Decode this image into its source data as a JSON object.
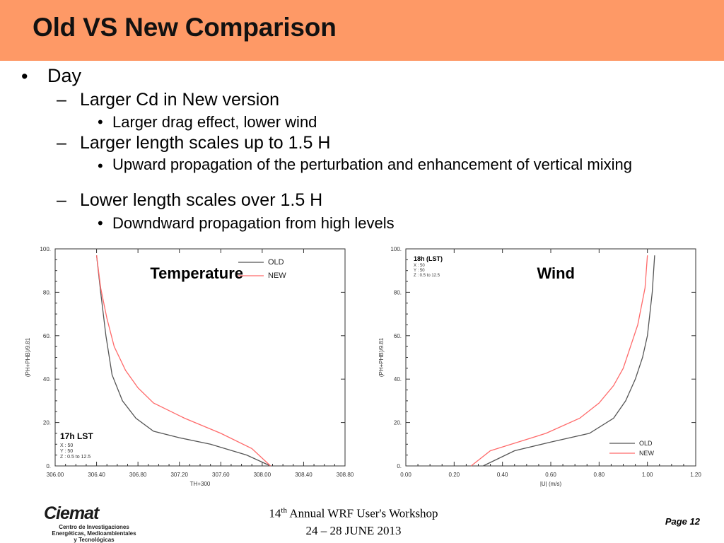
{
  "slide": {
    "title": "Old VS New Comparison",
    "bullets": [
      {
        "level": 1,
        "marker": "•",
        "text": "Day"
      },
      {
        "level": 2,
        "marker": "–",
        "text": "Larger Cd in New version"
      },
      {
        "level": 3,
        "marker": "•",
        "text": "Larger drag effect, lower wind"
      },
      {
        "level": 2,
        "marker": "–",
        "text": "Larger length scales up to 1.5 H"
      },
      {
        "level": 3,
        "marker": "•",
        "text": "Upward propagation of the perturbation and enhancement of vertical mixing"
      },
      {
        "level": 2,
        "marker": "–",
        "text": "Lower length scales over 1.5 H"
      },
      {
        "level": 3,
        "marker": "•",
        "text": "Downdward propagation from high levels"
      }
    ],
    "footer": {
      "workshop_prefix": "14",
      "workshop_sup": "th",
      "workshop_suffix": " Annual WRF User's Workshop",
      "dates": "24 – 28 JUNE 2013",
      "page": "Page 12",
      "logo_word": "Ciemat",
      "logo_lines": [
        "Centro de Investigaciones",
        "Energéticas, Medioambientales",
        "y Tecnológicas"
      ]
    }
  },
  "chart_data": [
    {
      "type": "line",
      "title": "Temperature",
      "xlabel": "TH+300",
      "ylabel": "(PH+PHB)/9.81",
      "xlim": [
        306.0,
        308.8
      ],
      "ylim": [
        0,
        100
      ],
      "xticks": [
        "306.00",
        "306.40",
        "306.80",
        "307.20",
        "307.60",
        "308.00",
        "308.40",
        "308.80"
      ],
      "yticks": [
        "0.",
        "20.",
        "40.",
        "60.",
        "80.",
        "100."
      ],
      "legend": "top-right",
      "annotation": {
        "title": "17h LST",
        "lines": [
          "X : 50",
          "Y : 50",
          "Z : 0.5 to 12.5"
        ]
      },
      "series": [
        {
          "name": "OLD",
          "color": "#555555",
          "x": [
            308.08,
            307.85,
            307.5,
            307.2,
            306.95,
            306.78,
            306.65,
            306.55,
            306.49,
            306.44,
            306.4
          ],
          "y": [
            0,
            5,
            10,
            13,
            16,
            22,
            30,
            42,
            60,
            80,
            97
          ]
        },
        {
          "name": "NEW",
          "color": "#ff6a6a",
          "x": [
            308.08,
            307.9,
            307.6,
            307.25,
            306.95,
            306.8,
            306.68,
            306.57,
            306.5,
            306.44,
            306.4
          ],
          "y": [
            0,
            8,
            15,
            22,
            29,
            36,
            44,
            55,
            68,
            82,
            97
          ]
        }
      ]
    },
    {
      "type": "line",
      "title": "Wind",
      "xlabel": "|U| (m/s)",
      "ylabel": "(PH+PHB)/9.81",
      "xlim": [
        0.0,
        1.2
      ],
      "ylim": [
        0,
        100
      ],
      "xticks": [
        "0.00",
        "0.20",
        "0.40",
        "0.60",
        "0.80",
        "1.00",
        "1.20"
      ],
      "yticks": [
        "0.",
        "20.",
        "40.",
        "60.",
        "80.",
        "100."
      ],
      "legend": "bottom-right",
      "annotation": {
        "title": "18h (LST)",
        "lines": [
          "X : 50",
          "Y : 50",
          "Z : 0.5 to 12.5"
        ]
      },
      "series": [
        {
          "name": "OLD",
          "color": "#555555",
          "x": [
            0.32,
            0.45,
            0.6,
            0.76,
            0.86,
            0.91,
            0.95,
            0.98,
            1.0,
            1.02,
            1.03
          ],
          "y": [
            0,
            7,
            11,
            15,
            22,
            30,
            40,
            50,
            60,
            80,
            97
          ]
        },
        {
          "name": "NEW",
          "color": "#ff6a6a",
          "x": [
            0.27,
            0.35,
            0.58,
            0.72,
            0.8,
            0.86,
            0.9,
            0.93,
            0.96,
            0.99,
            1.0
          ],
          "y": [
            0,
            7,
            15,
            22,
            29,
            37,
            45,
            55,
            65,
            82,
            97
          ]
        }
      ]
    }
  ]
}
